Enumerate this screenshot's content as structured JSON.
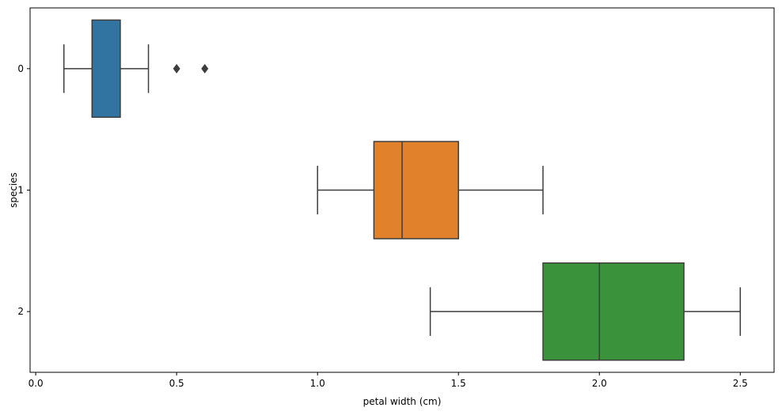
{
  "chart_data": {
    "type": "boxplot",
    "orientation": "horizontal",
    "title": "",
    "xlabel": "petal width (cm)",
    "ylabel": "species",
    "xlim": [
      -0.02,
      2.62
    ],
    "x_ticks": [
      {
        "value": 0.0,
        "label": "0.0"
      },
      {
        "value": 0.5,
        "label": "0.5"
      },
      {
        "value": 1.0,
        "label": "1.0"
      },
      {
        "value": 1.5,
        "label": "1.5"
      },
      {
        "value": 2.0,
        "label": "2.0"
      },
      {
        "value": 2.5,
        "label": "2.5"
      }
    ],
    "categories": [
      "0",
      "1",
      "2"
    ],
    "grid": false,
    "series": [
      {
        "category": "0",
        "whisker_low": 0.1,
        "q1": 0.2,
        "median": 0.2,
        "q3": 0.3,
        "whisker_high": 0.4,
        "outliers": [
          0.5,
          0.6
        ],
        "color": "#3274a1"
      },
      {
        "category": "1",
        "whisker_low": 1.0,
        "q1": 1.2,
        "median": 1.3,
        "q3": 1.5,
        "whisker_high": 1.8,
        "outliers": [],
        "color": "#e1812c"
      },
      {
        "category": "2",
        "whisker_low": 1.4,
        "q1": 1.8,
        "median": 2.0,
        "q3": 2.3,
        "whisker_high": 2.5,
        "outliers": [],
        "color": "#3a923a"
      }
    ],
    "line_color": "#3d3d3d",
    "spine_color": "#000000"
  }
}
